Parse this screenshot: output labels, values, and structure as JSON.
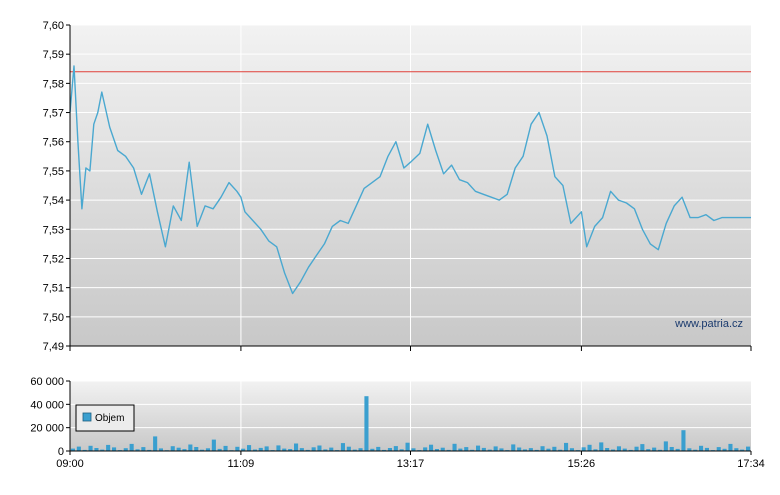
{
  "watermark": "www.patria.cz",
  "colors": {
    "price_line": "#4aa8d0",
    "reference_line": "#e0403a",
    "volume_bar": "#3a9fcf",
    "plot_bg_top": "#f2f2f2",
    "plot_bg_bottom": "#c8c8c8",
    "grid": "#ffffff",
    "axis": "#000000"
  },
  "chart_data": [
    {
      "type": "line",
      "title": "",
      "xlabel": "",
      "ylabel": "",
      "ylim": [
        7.49,
        7.6
      ],
      "yticks": [
        "7,60",
        "7,59",
        "7,58",
        "7,57",
        "7,56",
        "7,55",
        "7,54",
        "7,53",
        "7,52",
        "7,51",
        "7,50",
        "7,49"
      ],
      "reference_line": 7.584,
      "grid": true,
      "legend": "none",
      "xlim": [
        "09:00",
        "17:34"
      ],
      "series": [
        {
          "x": [
            "09:00",
            "09:03",
            "09:06",
            "09:09",
            "09:12",
            "09:15",
            "09:18",
            "09:21",
            "09:24",
            "09:30",
            "09:36",
            "09:42",
            "09:48",
            "09:54",
            "10:00",
            "10:06",
            "10:12",
            "10:18",
            "10:24",
            "10:30",
            "10:36",
            "10:42",
            "10:48",
            "10:54",
            "11:00",
            "11:06",
            "11:09",
            "11:12",
            "11:18",
            "11:24",
            "11:30",
            "11:36",
            "11:42",
            "11:48",
            "11:54",
            "12:00",
            "12:06",
            "12:12",
            "12:18",
            "12:24",
            "12:30",
            "12:36",
            "12:42",
            "12:48",
            "12:54",
            "13:00",
            "13:06",
            "13:12",
            "13:17",
            "13:24",
            "13:30",
            "13:36",
            "13:42",
            "13:48",
            "13:54",
            "14:00",
            "14:06",
            "14:12",
            "14:18",
            "14:24",
            "14:30",
            "14:36",
            "14:42",
            "14:48",
            "14:54",
            "15:00",
            "15:06",
            "15:12",
            "15:18",
            "15:24",
            "15:26",
            "15:30",
            "15:36",
            "15:42",
            "15:48",
            "15:54",
            "16:00",
            "16:06",
            "16:12",
            "16:18",
            "16:24",
            "16:30",
            "16:36",
            "16:42",
            "16:48",
            "16:54",
            "17:00",
            "17:06",
            "17:12",
            "17:18",
            "17:24",
            "17:30",
            "17:34"
          ],
          "values": [
            7.57,
            7.586,
            7.56,
            7.537,
            7.551,
            7.55,
            7.566,
            7.57,
            7.577,
            7.565,
            7.557,
            7.555,
            7.551,
            7.542,
            7.549,
            7.536,
            7.524,
            7.538,
            7.533,
            7.553,
            7.531,
            7.538,
            7.537,
            7.541,
            7.546,
            7.543,
            7.541,
            7.536,
            7.533,
            7.53,
            7.526,
            7.524,
            7.515,
            7.508,
            7.512,
            7.517,
            7.521,
            7.525,
            7.531,
            7.533,
            7.532,
            7.538,
            7.544,
            7.546,
            7.548,
            7.555,
            7.56,
            7.551,
            7.553,
            7.556,
            7.566,
            7.557,
            7.549,
            7.552,
            7.547,
            7.546,
            7.543,
            7.542,
            7.541,
            7.54,
            7.542,
            7.551,
            7.555,
            7.566,
            7.57,
            7.562,
            7.548,
            7.545,
            7.532,
            7.535,
            7.536,
            7.524,
            7.531,
            7.534,
            7.543,
            7.54,
            7.539,
            7.537,
            7.53,
            7.525,
            7.523,
            7.532,
            7.538,
            7.541,
            7.534,
            7.534,
            7.535,
            7.533,
            7.534,
            7.534,
            7.534,
            7.534,
            7.534
          ]
        }
      ]
    },
    {
      "type": "bar",
      "title": "",
      "xlabel": "",
      "ylabel": "",
      "ylim": [
        0,
        60000
      ],
      "yticks": [
        "60 000",
        "40 000",
        "20 000",
        "0"
      ],
      "xticks": [
        "09:00",
        "11:09",
        "13:17",
        "15:26",
        "17:34"
      ],
      "grid": true,
      "legend": "top-left",
      "series": [
        {
          "name": "Objem",
          "values": [
            2100,
            3800,
            900,
            4500,
            2600,
            1200,
            5200,
            3100,
            800,
            2400,
            6100,
            1500,
            3300,
            900,
            12500,
            2200,
            700,
            4100,
            2800,
            1600,
            5600,
            3400,
            1100,
            2300,
            9800,
            1800,
            4400,
            700,
            3600,
            2000,
            5100,
            1300,
            2700,
            3900,
            800,
            4800,
            2100,
            1700,
            6400,
            2500,
            900,
            3200,
            4700,
            1400,
            2900,
            800,
            6800,
            3700,
            1200,
            2400,
            47000,
            1900,
            3500,
            900,
            2600,
            4200,
            1500,
            7100,
            2300,
            800,
            3100,
            5400,
            1700,
            2800,
            900,
            6200,
            2100,
            3300,
            1000,
            4600,
            2700,
            1200,
            3900,
            2200,
            800,
            5700,
            3000,
            1400,
            2500,
            900,
            4100,
            2000,
            3600,
            1100,
            6900,
            2400,
            800,
            3200,
            5300,
            1500,
            7400,
            2600,
            1300,
            4000,
            2100,
            900,
            3700,
            5900,
            1600,
            2900,
            1000,
            8200,
            3400,
            1800,
            17800,
            2300,
            1100,
            4500,
            2700,
            800,
            3300,
            1900,
            6100,
            2400,
            1200,
            3800
          ]
        }
      ]
    }
  ]
}
